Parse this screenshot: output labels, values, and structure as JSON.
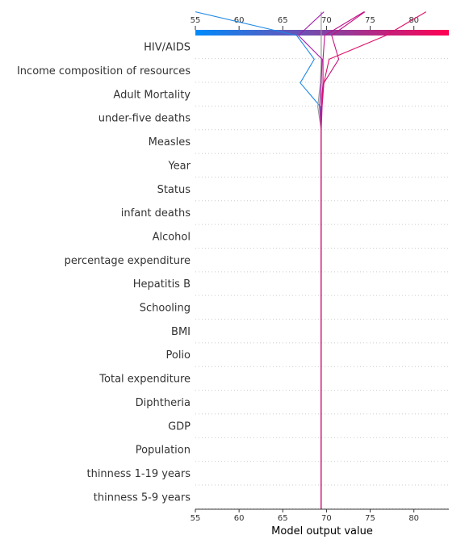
{
  "chart_data": {
    "type": "line",
    "title": "",
    "xlabel": "Model output value",
    "ylabel": "",
    "xlim": [
      55,
      84
    ],
    "xticks": [
      55,
      60,
      65,
      70,
      75,
      80
    ],
    "base_value": 69.4,
    "features": [
      "HIV/AIDS",
      "Income composition of resources",
      "Adult Mortality",
      "under-five deaths ",
      "Measles ",
      "Year",
      "Status",
      "infant deaths",
      "Alcohol",
      "percentage expenditure",
      "Hepatitis B",
      "Schooling",
      " BMI ",
      "Polio",
      "Total expenditure",
      "Diphtheria ",
      "GDP",
      "Population",
      " thinness  1-19 years",
      " thinness 5-9 years"
    ],
    "colorbar": {
      "colors": [
        "#008bfb",
        "#ff0052"
      ]
    },
    "series": [
      {
        "color": "#1e88e5",
        "values": [
          69.4,
          69.4,
          69.4,
          69.4,
          69.4,
          69.4,
          69.4,
          69.4,
          69.4,
          69.4,
          69.4,
          69.4,
          69.4,
          69.4,
          69.4,
          69.4,
          69.4,
          69.3,
          67.0,
          68.6,
          66.6,
          55.0
        ]
      },
      {
        "color": "#999999",
        "values": [
          69.4,
          69.4,
          69.4,
          69.4,
          69.4,
          69.4,
          69.4,
          69.4,
          69.4,
          69.4,
          69.4,
          69.4,
          69.4,
          69.4,
          69.4,
          69.4,
          69.4,
          69.0,
          69.3,
          69.4,
          69.4,
          69.4
        ]
      },
      {
        "color": "#a21caf",
        "values": [
          69.4,
          69.4,
          69.4,
          69.4,
          69.4,
          69.4,
          69.4,
          69.4,
          69.4,
          69.4,
          69.4,
          69.4,
          69.4,
          69.4,
          69.4,
          69.4,
          69.4,
          69.2,
          69.4,
          69.5,
          66.8,
          69.7
        ]
      },
      {
        "color": "#c0128a",
        "values": [
          69.4,
          69.4,
          69.4,
          69.4,
          69.4,
          69.4,
          69.4,
          69.4,
          69.4,
          69.4,
          69.4,
          69.4,
          69.4,
          69.4,
          69.4,
          69.4,
          69.4,
          69.4,
          69.6,
          69.6,
          69.8,
          74.3
        ]
      },
      {
        "color": "#c8137e",
        "values": [
          69.4,
          69.4,
          69.4,
          69.4,
          69.4,
          69.4,
          69.4,
          69.4,
          69.4,
          69.4,
          69.4,
          69.4,
          69.4,
          69.4,
          69.4,
          69.4,
          69.4,
          69.5,
          69.7,
          71.4,
          70.6,
          74.4
        ]
      },
      {
        "color": "#e0106a",
        "values": [
          69.4,
          69.4,
          69.4,
          69.4,
          69.4,
          69.4,
          69.4,
          69.4,
          69.4,
          69.4,
          69.4,
          69.4,
          69.4,
          69.4,
          69.4,
          69.4,
          69.4,
          69.4,
          69.7,
          70.3,
          76.8,
          81.4
        ]
      }
    ]
  }
}
